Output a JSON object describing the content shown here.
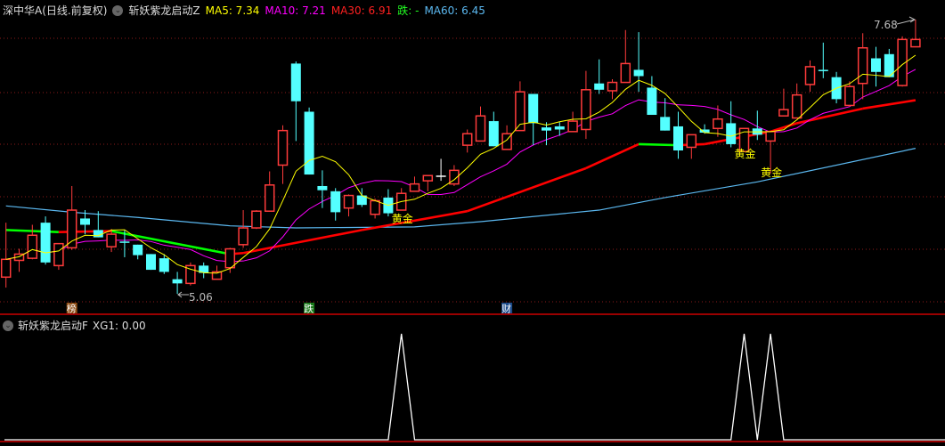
{
  "header": {
    "stock": "深中华A(日线.前复权)",
    "indicator": "斩妖紫龙启动Z",
    "ma5": "MA5: 7.34",
    "ma10": "MA10: 7.21",
    "ma30": "MA30: 6.91",
    "die": "跌: -",
    "ma60": "MA60: 6.45"
  },
  "colors": {
    "up": "#ff3b3b",
    "down": "#54ffff",
    "ma5": "#ffff00",
    "ma10": "#ff00ff",
    "ma30_up": "#ff0000",
    "ma30_down": "#00ff00",
    "ma60": "#5bb8f0",
    "grid": "#8b1a1a",
    "signal": "#ffffff"
  },
  "annotations": {
    "high_label": "7.68",
    "low_label": "5.06",
    "golden": "黄金",
    "tags": [
      {
        "text": "榜",
        "index": 5,
        "color": "#8b4a12"
      },
      {
        "text": "跌",
        "index": 23,
        "color": "#1a7a1a"
      },
      {
        "text": "财",
        "index": 38,
        "color": "#1a4a8a"
      }
    ],
    "golden_indices": [
      30,
      56,
      58
    ]
  },
  "sub": {
    "indicator": "斩妖紫龙启动F",
    "xg1": "XG1: 0.00"
  },
  "chart_data": {
    "type": "candlestick",
    "ylim": [
      5.06,
      7.68
    ],
    "candles_ohlc": [
      [
        5.22,
        5.74,
        5.12,
        5.39
      ],
      [
        5.38,
        5.49,
        5.27,
        5.44
      ],
      [
        5.4,
        5.72,
        5.39,
        5.62
      ],
      [
        5.74,
        5.8,
        5.34,
        5.36
      ],
      [
        5.33,
        5.54,
        5.29,
        5.54
      ],
      [
        5.5,
        6.09,
        5.48,
        5.86
      ],
      [
        5.78,
        5.86,
        5.63,
        5.72
      ],
      [
        5.67,
        5.85,
        5.6,
        5.6
      ],
      [
        5.51,
        5.68,
        5.46,
        5.63
      ],
      [
        5.56,
        5.67,
        5.41,
        5.55
      ],
      [
        5.53,
        5.53,
        5.39,
        5.43
      ],
      [
        5.44,
        5.44,
        5.29,
        5.29
      ],
      [
        5.4,
        5.44,
        5.25,
        5.27
      ],
      [
        5.2,
        5.27,
        5.06,
        5.16
      ],
      [
        5.16,
        5.36,
        5.14,
        5.33
      ],
      [
        5.33,
        5.36,
        5.21,
        5.26
      ],
      [
        5.2,
        5.33,
        5.2,
        5.27
      ],
      [
        5.31,
        5.5,
        5.26,
        5.49
      ],
      [
        5.53,
        5.86,
        5.5,
        5.69
      ],
      [
        5.69,
        5.86,
        5.68,
        5.85
      ],
      [
        5.85,
        6.23,
        5.85,
        6.1
      ],
      [
        6.29,
        6.67,
        6.11,
        6.62
      ],
      [
        7.26,
        7.28,
        6.52,
        6.9
      ],
      [
        6.8,
        6.84,
        6.2,
        6.2
      ],
      [
        6.09,
        6.24,
        5.88,
        6.05
      ],
      [
        6.04,
        6.07,
        5.76,
        5.84
      ],
      [
        5.88,
        6.01,
        5.8,
        6.0
      ],
      [
        6.0,
        6.07,
        5.89,
        5.91
      ],
      [
        5.82,
        5.97,
        5.78,
        5.95
      ],
      [
        5.98,
        6.06,
        5.8,
        5.83
      ],
      [
        5.86,
        6.07,
        5.86,
        6.02
      ],
      [
        6.04,
        6.18,
        6.04,
        6.11
      ],
      [
        6.14,
        6.19,
        6.04,
        6.19
      ],
      [
        6.19,
        6.35,
        6.14,
        6.19
      ],
      [
        6.11,
        6.29,
        6.09,
        6.24
      ],
      [
        6.48,
        6.63,
        6.41,
        6.59
      ],
      [
        6.52,
        6.85,
        6.52,
        6.76
      ],
      [
        6.71,
        6.8,
        6.47,
        6.47
      ],
      [
        6.44,
        6.67,
        6.44,
        6.59
      ],
      [
        6.62,
        7.09,
        6.62,
        6.99
      ],
      [
        6.97,
        6.97,
        6.48,
        6.69
      ],
      [
        6.65,
        6.7,
        6.48,
        6.62
      ],
      [
        6.66,
        6.7,
        6.57,
        6.63
      ],
      [
        6.61,
        6.8,
        6.61,
        6.71
      ],
      [
        6.63,
        7.19,
        6.54,
        7.01
      ],
      [
        7.07,
        7.3,
        6.97,
        7.01
      ],
      [
        7.0,
        7.11,
        6.92,
        7.08
      ],
      [
        7.08,
        7.58,
        7.08,
        7.26
      ],
      [
        7.2,
        7.56,
        6.99,
        7.14
      ],
      [
        7.03,
        7.14,
        6.77,
        6.77
      ],
      [
        6.75,
        6.93,
        6.62,
        6.62
      ],
      [
        6.66,
        6.8,
        6.35,
        6.43
      ],
      [
        6.46,
        6.58,
        6.35,
        6.58
      ],
      [
        6.63,
        6.68,
        6.59,
        6.6
      ],
      [
        6.64,
        6.86,
        6.56,
        6.73
      ],
      [
        6.69,
        6.9,
        6.46,
        6.49
      ],
      [
        6.42,
        6.64,
        6.42,
        6.64
      ],
      [
        6.64,
        6.81,
        6.53,
        6.58
      ],
      [
        6.52,
        6.61,
        6.21,
        6.61
      ],
      [
        6.76,
        7.02,
        6.76,
        6.82
      ],
      [
        6.74,
        7.07,
        6.74,
        6.96
      ],
      [
        7.06,
        7.29,
        6.99,
        7.23
      ],
      [
        7.2,
        7.46,
        7.12,
        7.19
      ],
      [
        7.13,
        7.18,
        6.88,
        6.92
      ],
      [
        6.86,
        7.09,
        6.86,
        7.04
      ],
      [
        7.07,
        7.55,
        6.92,
        7.41
      ],
      [
        7.31,
        7.42,
        7.04,
        7.18
      ],
      [
        7.35,
        7.4,
        7.13,
        7.13
      ],
      [
        7.05,
        7.52,
        7.04,
        7.49
      ],
      [
        7.42,
        7.68,
        7.42,
        7.49
      ]
    ],
    "ma30_points": [
      [
        0,
        5.67
      ],
      [
        4,
        5.65
      ],
      [
        8,
        5.66
      ],
      [
        17,
        5.44
      ],
      [
        18,
        5.45
      ],
      [
        27,
        5.67
      ],
      [
        35,
        5.85
      ],
      [
        44,
        6.26
      ],
      [
        48,
        6.49
      ],
      [
        51,
        6.48
      ],
      [
        53,
        6.49
      ],
      [
        58,
        6.61
      ],
      [
        60,
        6.69
      ],
      [
        65,
        6.83
      ],
      [
        69,
        6.91
      ]
    ],
    "ma60_points": [
      [
        0,
        5.9
      ],
      [
        5,
        5.84
      ],
      [
        10,
        5.79
      ],
      [
        17,
        5.71
      ],
      [
        22,
        5.69
      ],
      [
        31,
        5.7
      ],
      [
        36,
        5.75
      ],
      [
        45,
        5.86
      ],
      [
        50,
        5.98
      ],
      [
        57,
        6.13
      ],
      [
        69,
        6.45
      ]
    ],
    "xg1_signal_indices": [
      30,
      56,
      58
    ]
  }
}
